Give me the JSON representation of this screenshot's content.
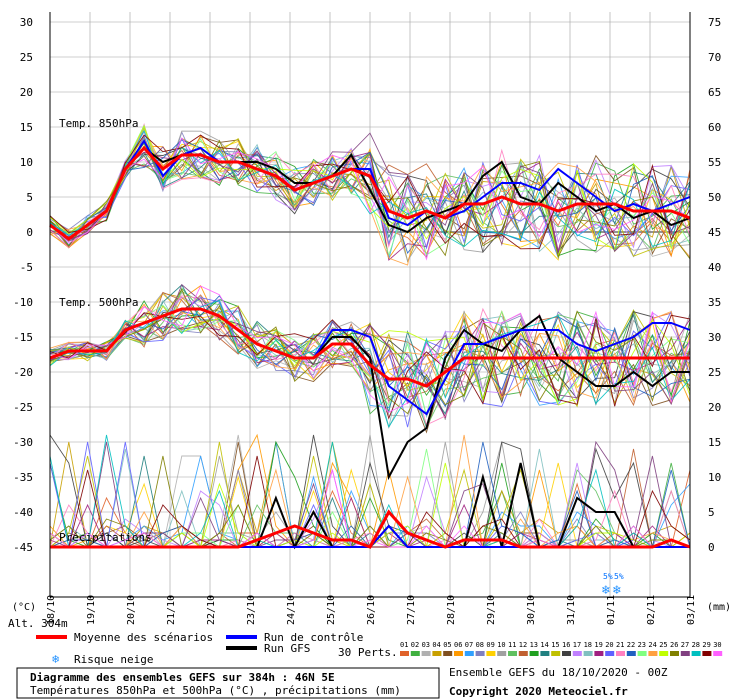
{
  "chart_data": {
    "type": "line",
    "title": "Diagramme des ensembles GEFS sur 384h : 46N 5E",
    "subtitle": "Températures 850hPa et 500hPa (°C) , précipitations (mm)",
    "left_axis": {
      "label": "(°C)",
      "ticks": [
        30,
        25,
        20,
        15,
        10,
        5,
        0,
        -5,
        -10,
        -15,
        -20,
        -25,
        -30,
        -35,
        -40,
        -45
      ],
      "range": [
        -45,
        30
      ]
    },
    "right_axis": {
      "label": "(mm)",
      "ticks": [
        75,
        70,
        65,
        60,
        55,
        50,
        45,
        40,
        35,
        30,
        25,
        20,
        15,
        10,
        5,
        0
      ],
      "range": [
        0,
        75
      ]
    },
    "x_ticks": [
      "18/10",
      "19/10",
      "20/10",
      "21/10",
      "22/10",
      "23/10",
      "24/10",
      "25/10",
      "26/10",
      "27/10",
      "28/10",
      "29/10",
      "30/10",
      "31/10",
      "01/11",
      "02/11",
      "03/11"
    ],
    "altitude_label": "Alt. 304m",
    "panel_labels": {
      "t850": "Temp. 850hPa",
      "t500": "Temp. 500hPa",
      "precip": "Précipitations"
    },
    "snow_risk_labels": [
      "5%",
      "5%"
    ],
    "series": [
      {
        "name": "Moyenne des scénarios",
        "color": "#ff0000",
        "panel": "t850",
        "values": [
          1,
          -1,
          1,
          3,
          9,
          12,
          9,
          11,
          11,
          10,
          10,
          9,
          8,
          6,
          7,
          8,
          9,
          8,
          3,
          2,
          3,
          2,
          4,
          4,
          5,
          4,
          4,
          3,
          4,
          4,
          4,
          3,
          3,
          3,
          2
        ]
      },
      {
        "name": "Run de contrôle",
        "color": "#0000ff",
        "panel": "t850",
        "values": [
          1,
          -1,
          1,
          3,
          9,
          13,
          8,
          11,
          12,
          10,
          10,
          9,
          8,
          6,
          7,
          8,
          9,
          9,
          2,
          1,
          3,
          2,
          3,
          5,
          7,
          7,
          6,
          9,
          7,
          5,
          3,
          4,
          3,
          4,
          5
        ]
      },
      {
        "name": "Run GFS",
        "color": "#000000",
        "panel": "t850",
        "values": [
          1,
          -1,
          1,
          3,
          9,
          12,
          10,
          11,
          11,
          10,
          10,
          10,
          9,
          7,
          7,
          8,
          11,
          6,
          1,
          0,
          2,
          3,
          4,
          8,
          10,
          5,
          4,
          7,
          5,
          3,
          4,
          2,
          3,
          1,
          2
        ]
      },
      {
        "name": "Moyenne des scénarios",
        "color": "#ff0000",
        "panel": "t500",
        "values": [
          -18,
          -17,
          -17,
          -17,
          -14,
          -13,
          -12,
          -11,
          -11,
          -12,
          -14,
          -16,
          -17,
          -18,
          -18,
          -16,
          -16,
          -19,
          -21,
          -21,
          -22,
          -20,
          -18,
          -18,
          -18,
          -18,
          -18,
          -18,
          -18,
          -18,
          -18,
          -18,
          -18,
          -18,
          -18
        ]
      },
      {
        "name": "Run de contrôle",
        "color": "#0000ff",
        "panel": "t500",
        "values": [
          -18,
          -17,
          -17,
          -17,
          -14,
          -13,
          -12,
          -11,
          -11,
          -12,
          -14,
          -16,
          -17,
          -18,
          -18,
          -14,
          -14,
          -15,
          -22,
          -24,
          -26,
          -21,
          -16,
          -16,
          -15,
          -14,
          -14,
          -14,
          -16,
          -17,
          -16,
          -15,
          -13,
          -13,
          -14
        ]
      },
      {
        "name": "Run GFS",
        "color": "#000000",
        "panel": "t500",
        "values": [
          -18,
          -17,
          -17,
          -17,
          -14,
          -13,
          -12,
          -11,
          -11,
          -12,
          -14,
          -16,
          -17,
          -18,
          -18,
          -15,
          -15,
          -18,
          -35,
          -30,
          -28,
          -18,
          -14,
          -16,
          -17,
          -14,
          -12,
          -18,
          -20,
          -22,
          -22,
          -20,
          -22,
          -20,
          -20
        ]
      },
      {
        "name": "Moyenne des scénarios",
        "color": "#ff0000",
        "panel": "precip",
        "values": [
          0,
          0,
          0,
          0,
          0,
          0,
          0,
          0,
          0,
          0,
          0,
          1,
          2,
          3,
          2,
          1,
          1,
          0,
          5,
          2,
          1,
          0,
          1,
          1,
          1,
          0,
          0,
          0,
          0,
          0,
          0,
          0,
          0,
          1,
          0
        ]
      },
      {
        "name": "Run de contrôle",
        "color": "#0000ff",
        "panel": "precip",
        "values": [
          0,
          0,
          0,
          0,
          0,
          0,
          0,
          0,
          0,
          0,
          0,
          0,
          0,
          0,
          0,
          0,
          0,
          0,
          3,
          0,
          0,
          0,
          0,
          0,
          0,
          0,
          0,
          0,
          0,
          0,
          0,
          0,
          0,
          0,
          0
        ]
      },
      {
        "name": "Run GFS",
        "color": "#000000",
        "panel": "precip",
        "values": [
          0,
          0,
          0,
          0,
          0,
          0,
          0,
          0,
          0,
          0,
          0,
          0,
          7,
          0,
          5,
          0,
          0,
          0,
          3,
          0,
          0,
          0,
          0,
          10,
          0,
          12,
          0,
          0,
          7,
          5,
          5,
          0,
          0,
          0,
          0
        ]
      }
    ],
    "perturbations": {
      "label": "30 Perts.",
      "count": 30,
      "colors": [
        "#e0622a",
        "#40b040",
        "#b0b0b0",
        "#c8a000",
        "#805020",
        "#ff9900",
        "#30a0ff",
        "#8080c0",
        "#ffd000",
        "#a0a0a0",
        "#60c060",
        "#c06030",
        "#20a020",
        "#208080",
        "#c0c000",
        "#404040",
        "#c080ff",
        "#80c0c0",
        "#a02080",
        "#6060ff",
        "#ff80c0",
        "#2060c0",
        "#80ff80",
        "#ffa040",
        "#c0ff00",
        "#808000",
        "#804080",
        "#00c0c0",
        "#800000",
        "#ff60ff"
      ]
    },
    "legend_position": "bottom"
  },
  "legend": {
    "mean": "Moyenne des scénarios",
    "control": "Run de contrôle",
    "gfs": "Run GFS",
    "snow": "Risque neige",
    "perts_label": "30 Perts."
  },
  "footer": {
    "title": "Diagramme des ensembles GEFS sur 384h : 46N 5E",
    "subtitle": "Températures 850hPa et 500hPa (°C) , précipitations (mm)",
    "ensemble": "Ensemble GEFS du 18/10/2020 - 00Z",
    "copyright": "Copyright 2020 Meteociel.fr"
  }
}
